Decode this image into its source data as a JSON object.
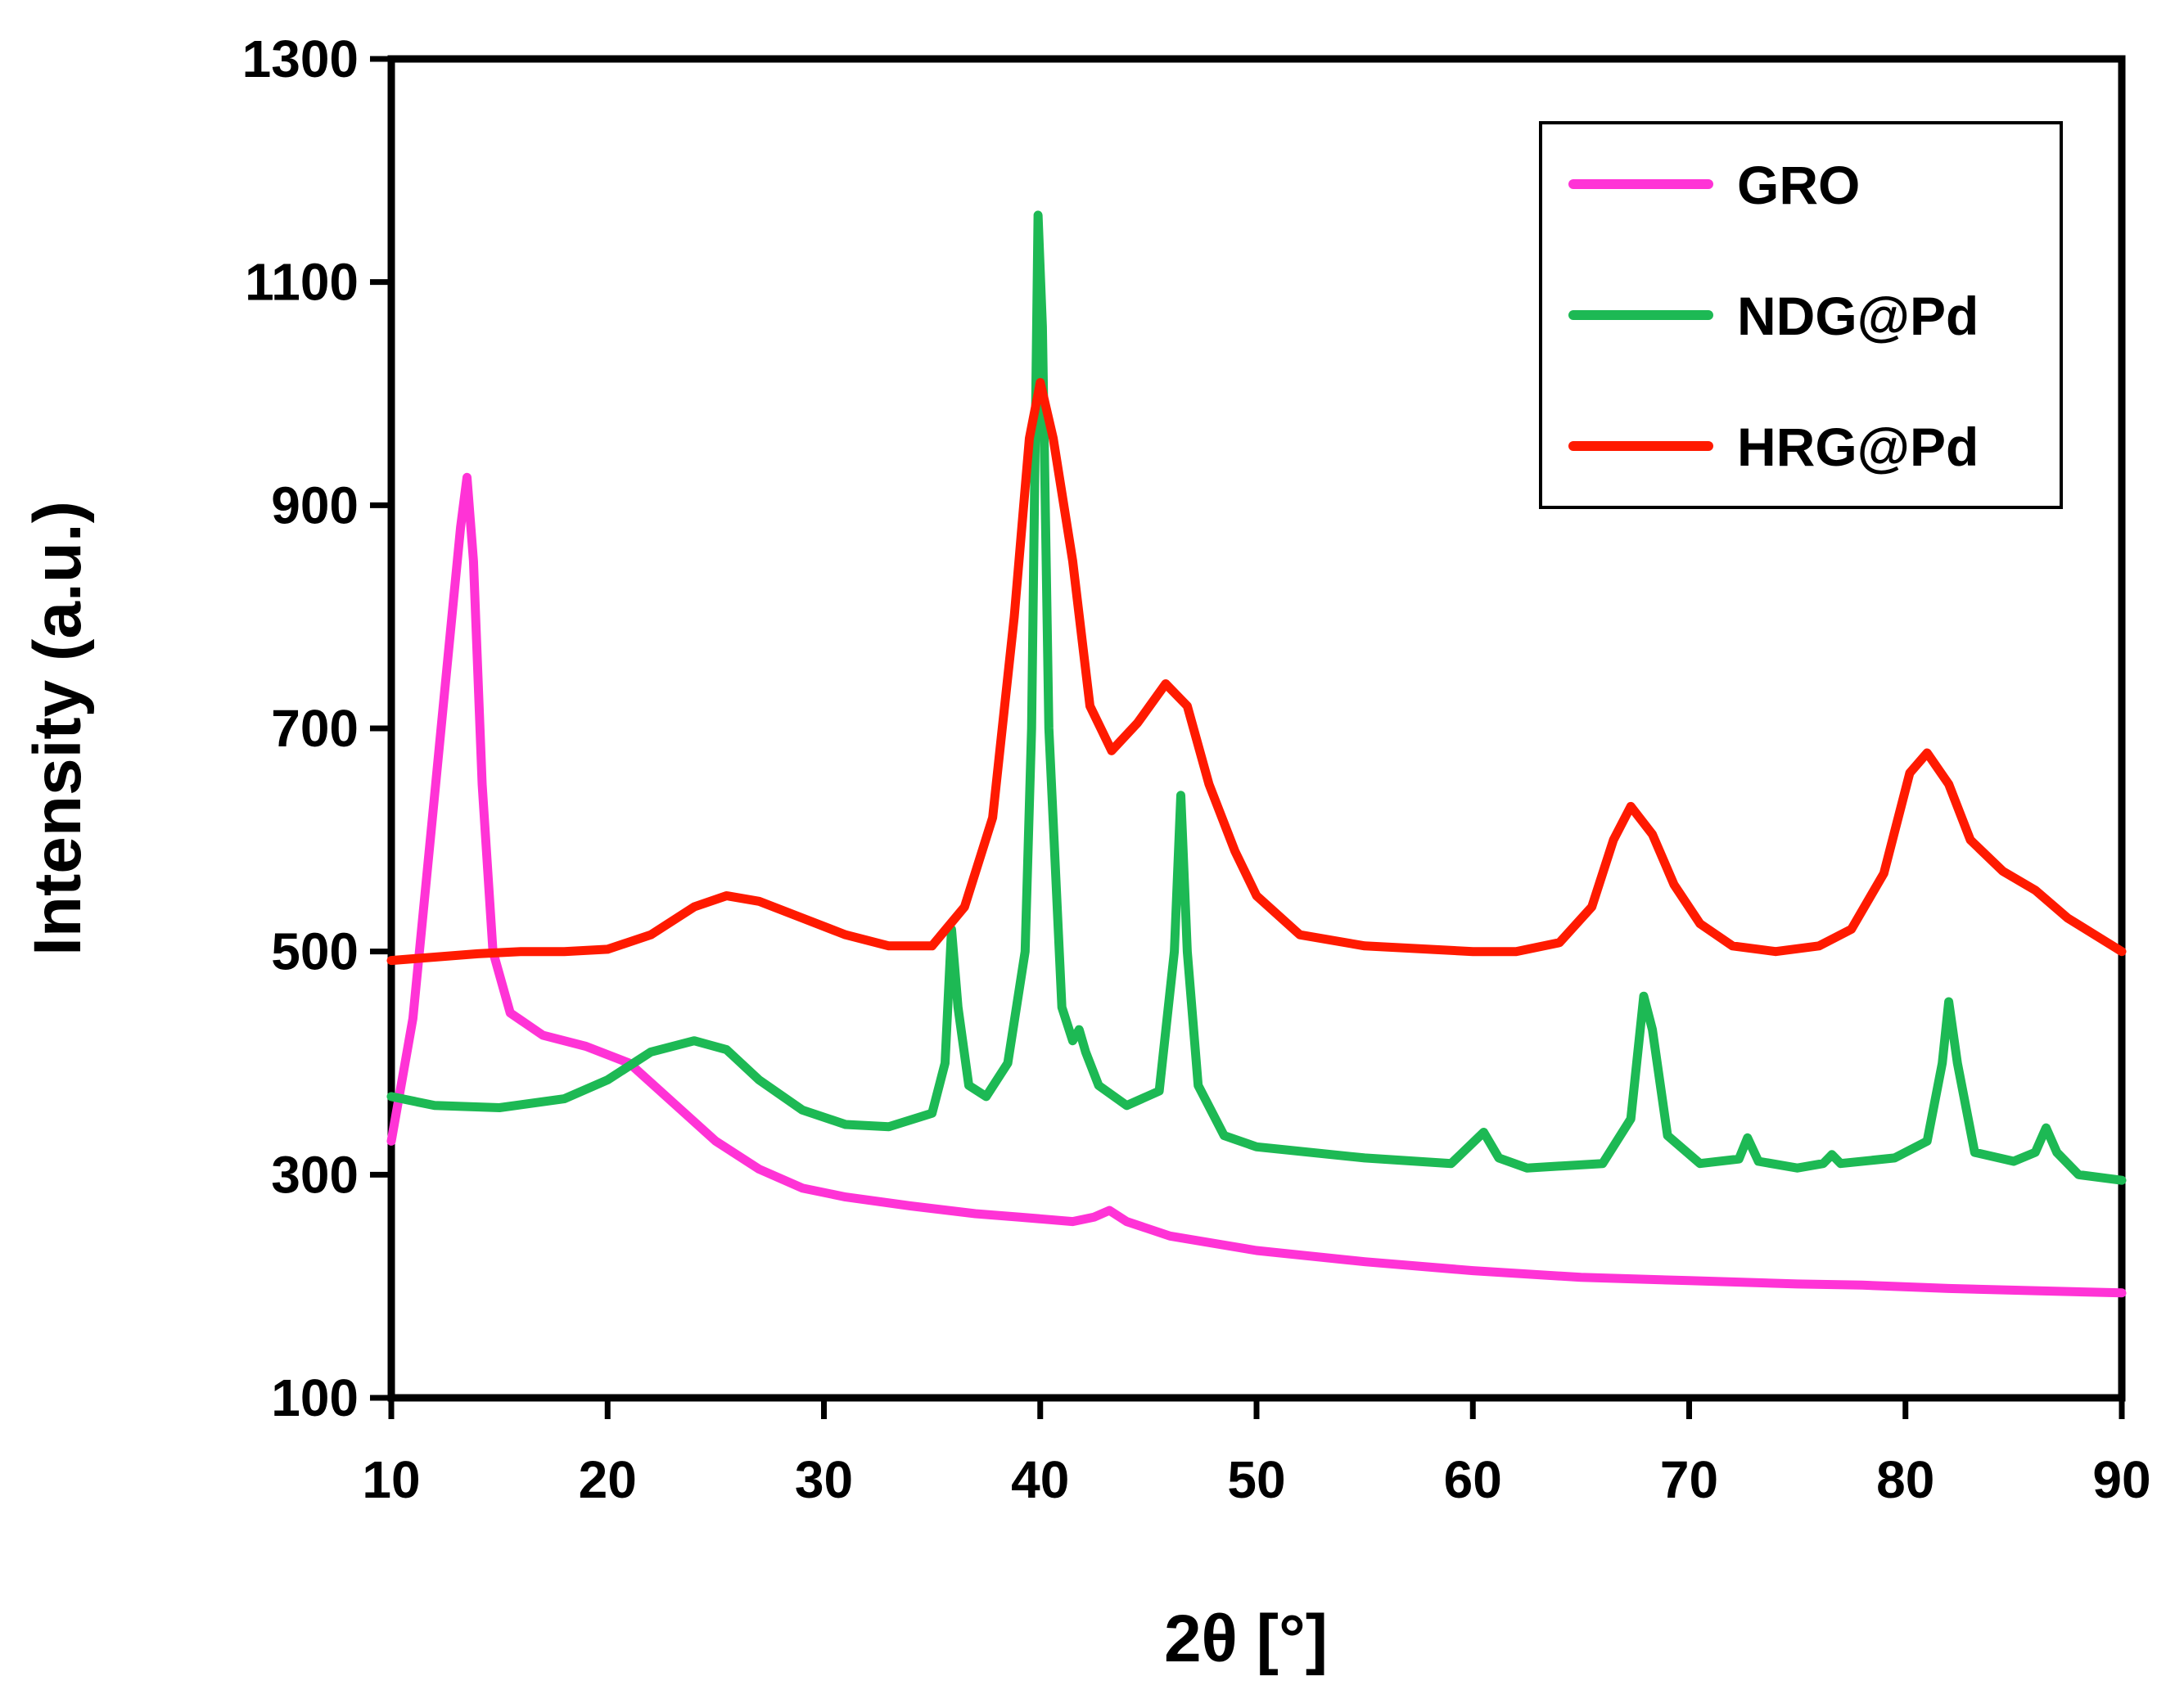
{
  "chart_data": {
    "type": "line",
    "title": "",
    "xlabel": "2θ [°]",
    "ylabel": "Intensity (a.u.)",
    "xlim": [
      10,
      90
    ],
    "ylim": [
      100,
      1300
    ],
    "xticks": [
      10,
      20,
      30,
      40,
      50,
      60,
      70,
      80,
      90
    ],
    "yticks": [
      100,
      300,
      500,
      700,
      900,
      1100,
      1300
    ],
    "xtick_labels": [
      "10",
      "20",
      "30",
      "40",
      "50",
      "60",
      "70",
      "80",
      "90"
    ],
    "ytick_labels": [
      "100",
      "300",
      "500",
      "700",
      "900",
      "1100",
      "1300"
    ],
    "grid": false,
    "legend_position": "top-right",
    "series": [
      {
        "name": "GRO",
        "color": "#ff33d6",
        "points": [
          [
            10,
            330
          ],
          [
            11,
            440
          ],
          [
            12,
            640
          ],
          [
            12.8,
            800
          ],
          [
            13.2,
            880
          ],
          [
            13.5,
            925
          ],
          [
            13.8,
            850
          ],
          [
            14.2,
            650
          ],
          [
            14.7,
            500
          ],
          [
            15.5,
            445
          ],
          [
            17,
            425
          ],
          [
            19,
            415
          ],
          [
            21,
            400
          ],
          [
            23,
            365
          ],
          [
            25,
            330
          ],
          [
            27,
            305
          ],
          [
            29,
            288
          ],
          [
            31,
            280
          ],
          [
            34,
            272
          ],
          [
            37,
            265
          ],
          [
            39,
            262
          ],
          [
            41.5,
            258
          ],
          [
            42.5,
            262
          ],
          [
            43.2,
            268
          ],
          [
            44,
            258
          ],
          [
            46,
            245
          ],
          [
            50,
            232
          ],
          [
            55,
            222
          ],
          [
            60,
            214
          ],
          [
            65,
            208
          ],
          [
            70,
            205
          ],
          [
            75,
            202
          ],
          [
            78,
            201
          ],
          [
            82,
            198
          ],
          [
            86,
            196
          ],
          [
            90,
            194
          ]
        ]
      },
      {
        "name": "NDG@Pd",
        "color": "#1db954",
        "points": [
          [
            10,
            370
          ],
          [
            12,
            362
          ],
          [
            15,
            360
          ],
          [
            18,
            368
          ],
          [
            20,
            385
          ],
          [
            22,
            410
          ],
          [
            24,
            420
          ],
          [
            25.5,
            412
          ],
          [
            27,
            385
          ],
          [
            29,
            358
          ],
          [
            31,
            345
          ],
          [
            33,
            343
          ],
          [
            35,
            355
          ],
          [
            35.6,
            400
          ],
          [
            35.9,
            520
          ],
          [
            36.2,
            450
          ],
          [
            36.7,
            380
          ],
          [
            37.5,
            370
          ],
          [
            38.5,
            400
          ],
          [
            39.3,
            500
          ],
          [
            39.6,
            700
          ],
          [
            39.9,
            1160
          ],
          [
            40.1,
            1060
          ],
          [
            40.4,
            700
          ],
          [
            41,
            450
          ],
          [
            41.5,
            420
          ],
          [
            41.8,
            430
          ],
          [
            42.1,
            410
          ],
          [
            42.7,
            380
          ],
          [
            44,
            362
          ],
          [
            45.5,
            375
          ],
          [
            46.2,
            500
          ],
          [
            46.5,
            640
          ],
          [
            46.8,
            500
          ],
          [
            47.3,
            380
          ],
          [
            48.5,
            335
          ],
          [
            50,
            325
          ],
          [
            55,
            315
          ],
          [
            59,
            310
          ],
          [
            60.5,
            338
          ],
          [
            61.2,
            315
          ],
          [
            62.5,
            306
          ],
          [
            66,
            310
          ],
          [
            67.3,
            350
          ],
          [
            67.9,
            460
          ],
          [
            68.3,
            430
          ],
          [
            69,
            335
          ],
          [
            70.5,
            310
          ],
          [
            72.3,
            314
          ],
          [
            72.7,
            333
          ],
          [
            73.2,
            312
          ],
          [
            75,
            306
          ],
          [
            76.2,
            310
          ],
          [
            76.6,
            318
          ],
          [
            77,
            310
          ],
          [
            79.5,
            315
          ],
          [
            81,
            330
          ],
          [
            81.7,
            400
          ],
          [
            82,
            455
          ],
          [
            82.4,
            400
          ],
          [
            83.2,
            320
          ],
          [
            85,
            312
          ],
          [
            86,
            320
          ],
          [
            86.5,
            342
          ],
          [
            87,
            320
          ],
          [
            88,
            300
          ],
          [
            90,
            295
          ]
        ]
      },
      {
        "name": "HRG@Pd",
        "color": "#ff1a00",
        "points": [
          [
            10,
            492
          ],
          [
            12,
            495
          ],
          [
            14,
            498
          ],
          [
            16,
            500
          ],
          [
            18,
            500
          ],
          [
            20,
            502
          ],
          [
            22,
            515
          ],
          [
            24,
            540
          ],
          [
            25.5,
            550
          ],
          [
            27,
            545
          ],
          [
            29,
            530
          ],
          [
            31,
            515
          ],
          [
            33,
            505
          ],
          [
            35,
            505
          ],
          [
            36.5,
            540
          ],
          [
            37.8,
            620
          ],
          [
            38.8,
            800
          ],
          [
            39.5,
            960
          ],
          [
            40,
            1010
          ],
          [
            40.6,
            960
          ],
          [
            41.5,
            850
          ],
          [
            42.3,
            720
          ],
          [
            43.3,
            680
          ],
          [
            44.5,
            705
          ],
          [
            45.8,
            740
          ],
          [
            46.8,
            720
          ],
          [
            47.8,
            650
          ],
          [
            49,
            590
          ],
          [
            50,
            550
          ],
          [
            52,
            515
          ],
          [
            55,
            505
          ],
          [
            60,
            500
          ],
          [
            62,
            500
          ],
          [
            64,
            508
          ],
          [
            65.5,
            540
          ],
          [
            66.5,
            600
          ],
          [
            67.3,
            630
          ],
          [
            68.3,
            605
          ],
          [
            69.3,
            560
          ],
          [
            70.5,
            525
          ],
          [
            72,
            505
          ],
          [
            74,
            500
          ],
          [
            76,
            505
          ],
          [
            77.5,
            520
          ],
          [
            79,
            570
          ],
          [
            80.2,
            660
          ],
          [
            81,
            678
          ],
          [
            82,
            650
          ],
          [
            83,
            600
          ],
          [
            84.5,
            572
          ],
          [
            86,
            555
          ],
          [
            87.5,
            530
          ],
          [
            90,
            500
          ]
        ]
      }
    ]
  }
}
